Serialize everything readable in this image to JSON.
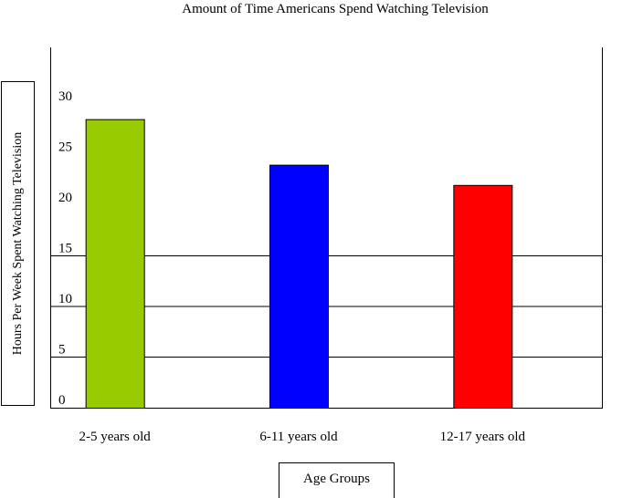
{
  "chart_data": {
    "type": "bar",
    "title": "Amount of Time Americans Spend Watching Television",
    "xlabel": "Age Groups",
    "ylabel": "Hours Per Week Spent Watching Television",
    "categories": [
      "2-5 years old",
      "6-11 years old",
      "12-17 years old"
    ],
    "values": [
      28.5,
      24,
      22
    ],
    "colors": [
      "#99cc00",
      "#0000ff",
      "#ff0000"
    ],
    "ylim": [
      0,
      30
    ],
    "yticks": [
      0,
      5,
      10,
      15,
      20,
      25,
      30
    ],
    "grid": true
  }
}
